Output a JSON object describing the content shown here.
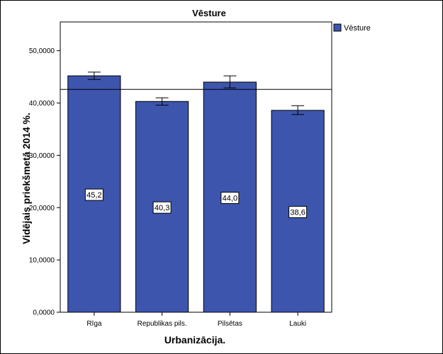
{
  "chart_data": {
    "type": "bar",
    "title": "Vēsture",
    "xlabel": "Urbanizācija.",
    "ylabel": "Vidējais priekšmetā 2014 %.",
    "categories": [
      "Rīga",
      "Republikas pils.",
      "Pilsētas",
      "Lauki"
    ],
    "series": [
      {
        "name": "Vēsture",
        "values": [
          45.2,
          40.3,
          44.0,
          38.6
        ],
        "data_labels": [
          "45,2",
          "40,3",
          "44,0",
          "38,6"
        ],
        "error_low": [
          44.5,
          39.6,
          42.9,
          37.8
        ],
        "error_high": [
          45.9,
          41.0,
          45.2,
          39.5
        ],
        "color": "#3D55AD"
      }
    ],
    "reference_line": 42.6,
    "ylim": [
      0,
      55.5
    ],
    "yticks": [
      0,
      10,
      20,
      30,
      40,
      50
    ],
    "ytick_labels": [
      "0,0000",
      "10,0000",
      "20,0000",
      "30,0000",
      "40,0000",
      "50,0000"
    ],
    "grid": false,
    "legend_position": "top-right"
  }
}
